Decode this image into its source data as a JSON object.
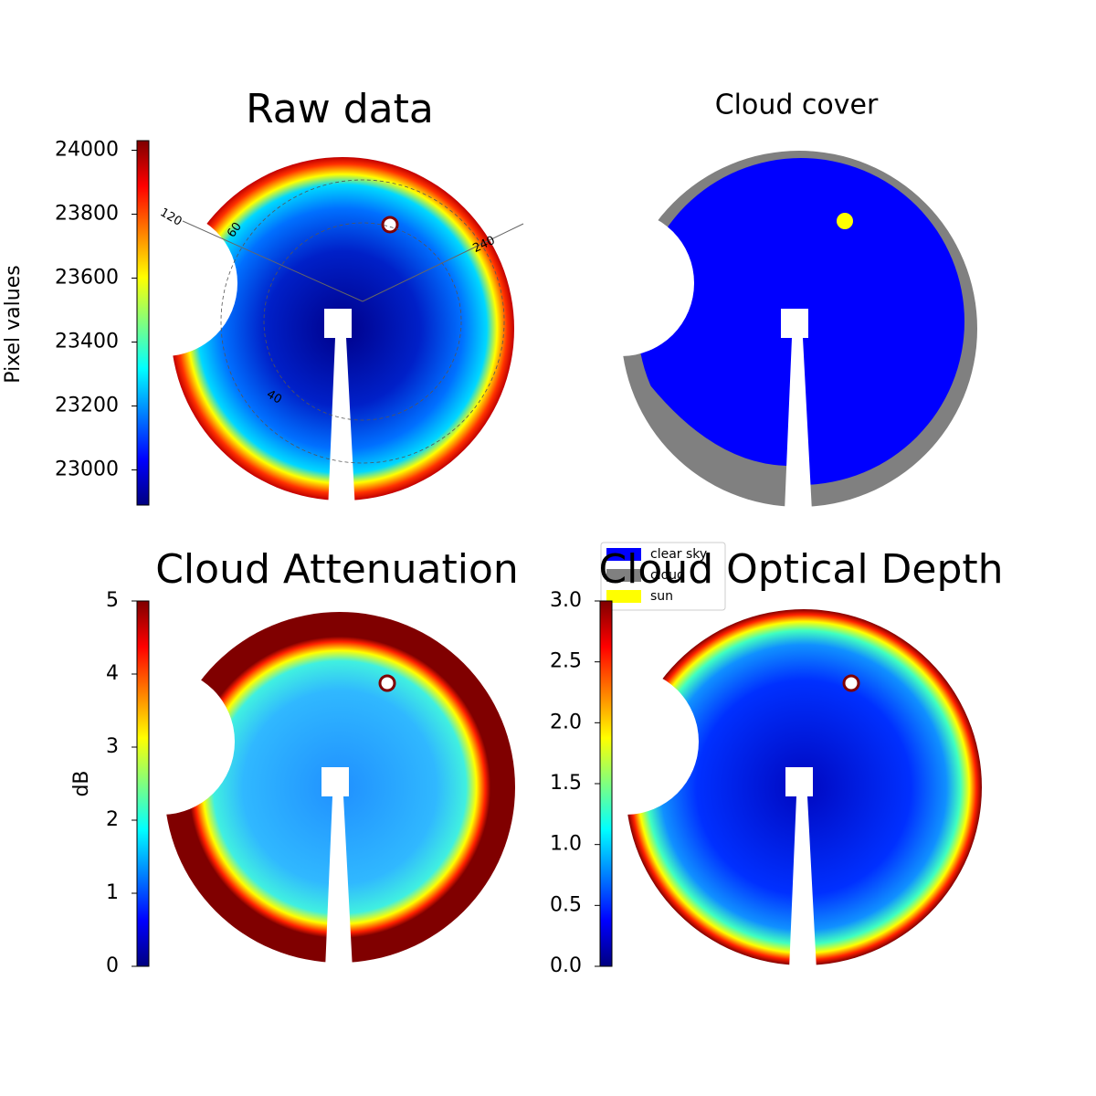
{
  "chart_data": [
    {
      "type": "image",
      "title": "Raw data",
      "colormap": "jet",
      "colorbar_label": "Pixel values",
      "ylim": [
        22890,
        24030
      ],
      "yticks": [
        23000,
        23200,
        23400,
        23600,
        23800,
        24000
      ],
      "annotations": [
        "120",
        "60",
        "240",
        "40"
      ]
    },
    {
      "type": "image",
      "title": "Cloud cover",
      "series": [
        {
          "name": "clear sky",
          "color": "#0000ff"
        },
        {
          "name": "cloud",
          "color": "#808080"
        },
        {
          "name": "sun",
          "color": "#ffff00"
        }
      ]
    },
    {
      "type": "image",
      "title": "Cloud Attenuation",
      "colormap": "jet",
      "colorbar_label": "dB",
      "ylim": [
        0,
        5
      ],
      "yticks": [
        0,
        1,
        2,
        3,
        4,
        5
      ]
    },
    {
      "type": "image",
      "title": "Cloud Optical Depth",
      "colormap": "jet",
      "ylim": [
        0,
        3
      ],
      "yticks": [
        {
          "value": 0,
          "label": "0.0"
        },
        {
          "value": 0.5,
          "label": "0.5"
        },
        {
          "value": 1,
          "label": "1.0"
        },
        {
          "value": 1.5,
          "label": "1.5"
        },
        {
          "value": 2,
          "label": "2.0"
        },
        {
          "value": 2.5,
          "label": "2.5"
        },
        {
          "value": 3,
          "label": "3.0"
        }
      ]
    }
  ]
}
